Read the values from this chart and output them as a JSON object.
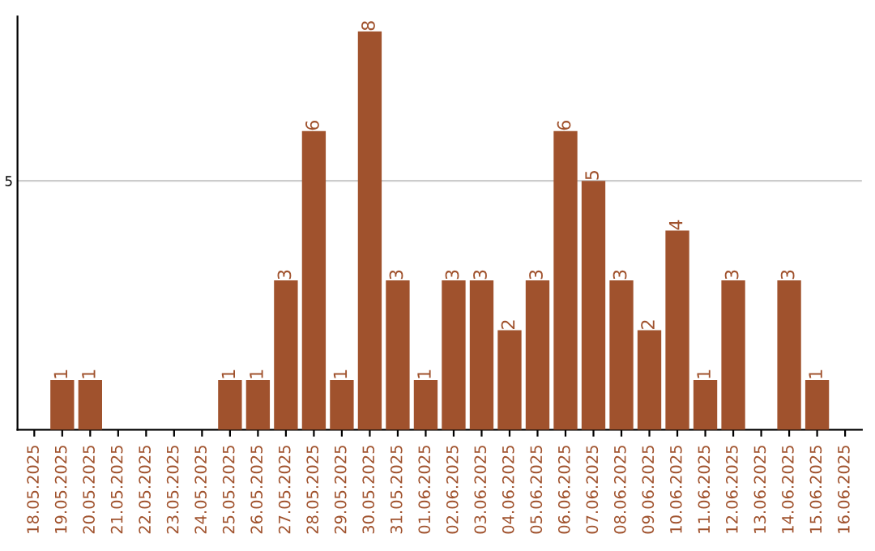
{
  "chart_data": {
    "type": "bar",
    "categories": [
      "18.05.2025",
      "19.05.2025",
      "20.05.2025",
      "21.05.2025",
      "22.05.2025",
      "23.05.2025",
      "24.05.2025",
      "25.05.2025",
      "26.05.2025",
      "27.05.2025",
      "28.05.2025",
      "29.05.2025",
      "30.05.2025",
      "31.05.2025",
      "01.06.2025",
      "02.06.2025",
      "03.06.2025",
      "04.06.2025",
      "05.06.2025",
      "06.06.2025",
      "07.06.2025",
      "08.06.2025",
      "09.06.2025",
      "10.06.2025",
      "11.06.2025",
      "12.06.2025",
      "13.06.2025",
      "14.06.2025",
      "15.06.2025",
      "16.06.2025"
    ],
    "values": [
      0,
      1,
      1,
      0,
      0,
      0,
      0,
      1,
      1,
      3,
      6,
      1,
      8,
      3,
      1,
      3,
      3,
      2,
      3,
      6,
      5,
      3,
      2,
      4,
      1,
      3,
      0,
      3,
      1,
      0
    ],
    "value_labels": [
      null,
      "1",
      "1",
      null,
      null,
      null,
      null,
      "1",
      "1",
      "3",
      "6",
      "1",
      "8",
      "3",
      "1",
      "3",
      "3",
      "2",
      "3",
      "6",
      "5",
      "3",
      "2",
      "4",
      "1",
      "3",
      null,
      "3",
      "1",
      null
    ],
    "color": "#a0522d",
    "ylim": [
      0,
      8.3
    ],
    "yticks": [
      5
    ],
    "grid": "y"
  }
}
